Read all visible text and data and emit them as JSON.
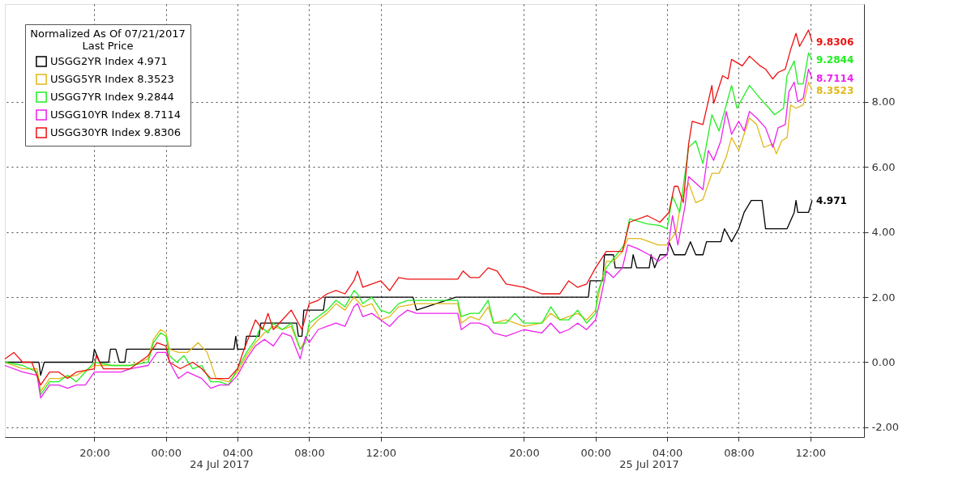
{
  "chart_data": {
    "type": "line",
    "legend_title": "Normalized As Of 07/21/2017\nLast Price",
    "legend": "top left",
    "grid": true,
    "line_style": "solid",
    "marker": "none",
    "xlim": [
      "2017-07-23T15:00",
      "2017-07-25T15:00"
    ],
    "xticks": [
      {
        "value": "2017-07-23T20:00",
        "label": "20:00"
      },
      {
        "value": "2017-07-24T00:00",
        "label": "00:00"
      },
      {
        "value": "2017-07-24T04:00",
        "label": "04:00"
      },
      {
        "value": "2017-07-24T08:00",
        "label": "08:00"
      },
      {
        "value": "2017-07-24T12:00",
        "label": "12:00"
      },
      {
        "value": "2017-07-24T20:00",
        "label": "20:00"
      },
      {
        "value": "2017-07-25T00:00",
        "label": "00:00"
      },
      {
        "value": "2017-07-25T04:00",
        "label": "04:00"
      },
      {
        "value": "2017-07-25T08:00",
        "label": "08:00"
      },
      {
        "value": "2017-07-25T12:00",
        "label": "12:00"
      }
    ],
    "ylim": [
      -2.3,
      11
    ],
    "yticks": [
      {
        "value": -2,
        "label": "-2.00"
      },
      {
        "value": 0,
        "label": "0.00"
      },
      {
        "value": 2,
        "label": "2.00"
      },
      {
        "value": 4,
        "label": "4.00"
      },
      {
        "value": 6,
        "label": "6.00"
      },
      {
        "value": 8,
        "label": "8.00"
      }
    ],
    "annotations": [
      "24 Jul 2017",
      "25 Jul 2017"
    ],
    "series": [
      {
        "name": "USGG2YR Index 4.971",
        "color": "#000000",
        "x": [
          "2017-07-23T15:00",
          "2017-07-23T16:54",
          "2017-07-23T17:00",
          "2017-07-23T17:12",
          "2017-07-23T19:54",
          "2017-07-23T20:00",
          "2017-07-23T20:18",
          "2017-07-23T20:48",
          "2017-07-23T20:54",
          "2017-07-23T21:12",
          "2017-07-23T21:24",
          "2017-07-23T21:42",
          "2017-07-23T21:48",
          "2017-07-24T03:48",
          "2017-07-24T03:54",
          "2017-07-24T04:00",
          "2017-07-24T04:24",
          "2017-07-24T04:30",
          "2017-07-24T05:12",
          "2017-07-24T05:18",
          "2017-07-24T07:18",
          "2017-07-24T07:24",
          "2017-07-24T07:36",
          "2017-07-24T07:42",
          "2017-07-24T08:48",
          "2017-07-24T08:54",
          "2017-07-24T13:48",
          "2017-07-24T14:00",
          "2017-07-24T16:12",
          "2017-07-24T23:36",
          "2017-07-24T23:42",
          "2017-07-25T00:24",
          "2017-07-25T00:30",
          "2017-07-25T01:00",
          "2017-07-25T01:06",
          "2017-07-25T02:00",
          "2017-07-25T02:06",
          "2017-07-25T02:18",
          "2017-07-25T03:00",
          "2017-07-25T03:06",
          "2017-07-25T03:18",
          "2017-07-25T03:36",
          "2017-07-25T04:00",
          "2017-07-25T04:06",
          "2017-07-25T04:24",
          "2017-07-25T05:00",
          "2017-07-25T05:18",
          "2017-07-25T05:36",
          "2017-07-25T06:00",
          "2017-07-25T06:12",
          "2017-07-25T06:42",
          "2017-07-25T07:00",
          "2017-07-25T07:12",
          "2017-07-25T07:36",
          "2017-07-25T08:00",
          "2017-07-25T08:18",
          "2017-07-25T08:42",
          "2017-07-25T09:18",
          "2017-07-25T09:30",
          "2017-07-25T10:42",
          "2017-07-25T11:06",
          "2017-07-25T11:12",
          "2017-07-25T11:18",
          "2017-07-25T11:54",
          "2017-07-25T12:06"
        ],
        "values": [
          0,
          0,
          -0.4,
          0,
          0,
          0.4,
          0,
          0,
          0.4,
          0.4,
          0,
          0,
          0.4,
          0.4,
          0.8,
          0.4,
          0.4,
          0.8,
          0.8,
          1.2,
          1.2,
          0.8,
          0.8,
          1.6,
          1.6,
          2.0,
          2.0,
          1.6,
          2.0,
          2.0,
          2.5,
          2.5,
          3.3,
          3.3,
          2.9,
          2.9,
          3.3,
          2.9,
          2.9,
          3.3,
          2.9,
          3.3,
          3.3,
          3.7,
          3.3,
          3.3,
          3.7,
          3.3,
          3.3,
          3.7,
          3.7,
          3.7,
          4.1,
          3.7,
          4.1,
          4.6,
          4.97,
          4.97,
          4.1,
          4.1,
          4.6,
          4.97,
          4.6,
          4.6,
          4.971
        ],
        "value_labels": [
          null,
          null,
          null,
          null,
          null,
          null,
          null,
          null,
          null,
          null,
          null,
          null,
          null,
          null,
          null,
          null,
          null,
          null,
          null,
          null,
          null,
          null,
          null,
          null,
          null,
          null,
          null,
          null,
          null,
          null,
          null,
          null,
          null,
          null,
          null,
          null,
          null,
          null,
          null,
          null,
          null,
          null,
          null,
          null,
          null,
          null,
          null,
          null,
          null,
          null,
          null,
          null,
          null,
          null,
          null,
          null,
          null,
          null,
          null,
          null,
          null,
          null,
          null,
          null,
          "4.971"
        ]
      },
      {
        "name": "USGG5YR Index 8.3523",
        "color": "#e0b81a",
        "x": [
          "2017-07-23T15:00",
          "2017-07-23T16:00",
          "2017-07-23T16:48",
          "2017-07-23T17:00",
          "2017-07-23T17:30",
          "2017-07-23T18:00",
          "2017-07-23T19:00",
          "2017-07-23T20:00",
          "2017-07-23T21:00",
          "2017-07-23T22:00",
          "2017-07-23T23:00",
          "2017-07-23T23:18",
          "2017-07-23T23:42",
          "2017-07-24T00:00",
          "2017-07-24T00:12",
          "2017-07-24T00:42",
          "2017-07-24T01:12",
          "2017-07-24T01:48",
          "2017-07-24T02:18",
          "2017-07-24T02:48",
          "2017-07-24T03:30",
          "2017-07-24T04:00",
          "2017-07-24T04:30",
          "2017-07-24T05:00",
          "2017-07-24T05:30",
          "2017-07-24T06:00",
          "2017-07-24T06:30",
          "2017-07-24T07:00",
          "2017-07-24T07:30",
          "2017-07-24T07:48",
          "2017-07-24T08:00",
          "2017-07-24T08:30",
          "2017-07-24T09:00",
          "2017-07-24T09:30",
          "2017-07-24T10:00",
          "2017-07-24T10:30",
          "2017-07-24T11:00",
          "2017-07-24T11:30",
          "2017-07-24T12:00",
          "2017-07-24T12:30",
          "2017-07-24T13:00",
          "2017-07-24T14:00",
          "2017-07-24T16:18",
          "2017-07-24T16:30",
          "2017-07-24T17:00",
          "2017-07-24T17:30",
          "2017-07-24T18:00",
          "2017-07-24T18:18",
          "2017-07-24T19:00",
          "2017-07-24T20:00",
          "2017-07-24T21:00",
          "2017-07-24T21:30",
          "2017-07-24T22:00",
          "2017-07-24T23:00",
          "2017-07-24T23:30",
          "2017-07-25T00:00",
          "2017-07-25T00:18",
          "2017-07-25T00:36",
          "2017-07-25T01:00",
          "2017-07-25T01:30",
          "2017-07-25T01:48",
          "2017-07-25T02:30",
          "2017-07-25T03:00",
          "2017-07-25T03:30",
          "2017-07-25T04:00",
          "2017-07-25T04:30",
          "2017-07-25T04:48",
          "2017-07-25T05:12",
          "2017-07-25T05:36",
          "2017-07-25T06:00",
          "2017-07-25T06:30",
          "2017-07-25T06:54",
          "2017-07-25T07:18",
          "2017-07-25T07:36",
          "2017-07-25T08:00",
          "2017-07-25T08:36",
          "2017-07-25T09:00",
          "2017-07-25T09:24",
          "2017-07-25T09:54",
          "2017-07-25T10:06",
          "2017-07-25T10:24",
          "2017-07-25T10:42",
          "2017-07-25T10:54",
          "2017-07-25T11:12",
          "2017-07-25T11:36",
          "2017-07-25T11:54",
          "2017-07-25T12:06"
        ],
        "values": [
          0.0,
          -0.2,
          -0.2,
          -0.9,
          -0.5,
          -0.5,
          -0.4,
          -0.1,
          -0.1,
          -0.1,
          0.1,
          0.7,
          1.0,
          0.9,
          0.4,
          0.3,
          0.3,
          0.6,
          0.3,
          -0.5,
          -0.6,
          -0.3,
          0.2,
          0.6,
          0.9,
          1.1,
          1.0,
          1.1,
          0.4,
          0.7,
          1.0,
          1.3,
          1.5,
          1.8,
          1.6,
          2.0,
          1.7,
          1.8,
          1.3,
          1.4,
          1.7,
          1.8,
          1.8,
          1.2,
          1.4,
          1.3,
          1.7,
          1.2,
          1.3,
          1.1,
          1.2,
          1.5,
          1.3,
          1.5,
          1.3,
          1.6,
          2.4,
          3.1,
          3.1,
          3.4,
          3.8,
          3.8,
          3.7,
          3.6,
          3.6,
          4.0,
          5.0,
          5.5,
          4.9,
          5.0,
          5.8,
          5.8,
          6.3,
          6.9,
          6.5,
          7.5,
          7.3,
          6.6,
          6.7,
          6.4,
          6.8,
          6.9,
          7.9,
          7.8,
          7.9,
          8.6,
          8.3523
        ],
        "value_labels": [
          null,
          null,
          null,
          null,
          null,
          null,
          null,
          null,
          null,
          null,
          null,
          null,
          null,
          null,
          null,
          null,
          null,
          null,
          null,
          null,
          null,
          null,
          null,
          null,
          null,
          null,
          null,
          null,
          null,
          null,
          null,
          null,
          null,
          null,
          null,
          null,
          null,
          null,
          null,
          null,
          null,
          null,
          null,
          null,
          null,
          null,
          null,
          null,
          null,
          null,
          null,
          null,
          null,
          null,
          null,
          null,
          null,
          null,
          null,
          null,
          null,
          null,
          null,
          null,
          null,
          null,
          null,
          null,
          null,
          null,
          null,
          null,
          null,
          null,
          null,
          null,
          null,
          null,
          null,
          null,
          null,
          null,
          null,
          null,
          null,
          null,
          "8.3523"
        ]
      },
      {
        "name": "USGG7YR Index 9.2844",
        "color": "#22ee22",
        "x": [
          "2017-07-23T15:00",
          "2017-07-23T16:00",
          "2017-07-23T16:48",
          "2017-07-23T17:00",
          "2017-07-23T17:30",
          "2017-07-23T18:00",
          "2017-07-23T18:30",
          "2017-07-23T19:00",
          "2017-07-23T19:30",
          "2017-07-23T20:00",
          "2017-07-23T21:00",
          "2017-07-23T22:00",
          "2017-07-23T23:00",
          "2017-07-23T23:18",
          "2017-07-23T23:42",
          "2017-07-24T00:00",
          "2017-07-24T00:12",
          "2017-07-24T00:36",
          "2017-07-24T01:00",
          "2017-07-24T01:30",
          "2017-07-24T02:00",
          "2017-07-24T02:30",
          "2017-07-24T03:00",
          "2017-07-24T03:30",
          "2017-07-24T04:00",
          "2017-07-24T04:30",
          "2017-07-24T05:00",
          "2017-07-24T05:18",
          "2017-07-24T05:42",
          "2017-07-24T06:00",
          "2017-07-24T06:30",
          "2017-07-24T07:00",
          "2017-07-24T07:30",
          "2017-07-24T07:48",
          "2017-07-24T08:00",
          "2017-07-24T08:30",
          "2017-07-24T09:00",
          "2017-07-24T09:30",
          "2017-07-24T10:00",
          "2017-07-24T10:30",
          "2017-07-24T10:42",
          "2017-07-24T11:00",
          "2017-07-24T11:30",
          "2017-07-24T12:00",
          "2017-07-24T12:30",
          "2017-07-24T13:00",
          "2017-07-24T13:30",
          "2017-07-24T14:00",
          "2017-07-24T16:18",
          "2017-07-24T16:30",
          "2017-07-24T17:00",
          "2017-07-24T17:30",
          "2017-07-24T18:00",
          "2017-07-24T18:18",
          "2017-07-24T19:00",
          "2017-07-24T19:30",
          "2017-07-24T20:00",
          "2017-07-24T21:00",
          "2017-07-24T21:30",
          "2017-07-24T22:00",
          "2017-07-24T22:30",
          "2017-07-24T23:00",
          "2017-07-24T23:30",
          "2017-07-25T00:00",
          "2017-07-25T00:06",
          "2017-07-25T00:36",
          "2017-07-25T01:36",
          "2017-07-25T01:54",
          "2017-07-25T02:54",
          "2017-07-25T03:36",
          "2017-07-25T04:00",
          "2017-07-25T04:18",
          "2017-07-25T04:42",
          "2017-07-25T05:12",
          "2017-07-25T05:36",
          "2017-07-25T06:00",
          "2017-07-25T06:30",
          "2017-07-25T06:54",
          "2017-07-25T07:24",
          "2017-07-25T07:36",
          "2017-07-25T07:54",
          "2017-07-25T08:36",
          "2017-07-25T09:12",
          "2017-07-25T09:42",
          "2017-07-25T10:00",
          "2017-07-25T10:30",
          "2017-07-25T10:42",
          "2017-07-25T11:06",
          "2017-07-25T11:18",
          "2017-07-25T11:36",
          "2017-07-25T11:54",
          "2017-07-25T12:06"
        ],
        "values": [
          0.0,
          -0.1,
          -0.3,
          -1.0,
          -0.6,
          -0.6,
          -0.4,
          -0.6,
          -0.3,
          0.0,
          -0.1,
          -0.1,
          0.0,
          0.6,
          0.9,
          0.8,
          0.2,
          0.0,
          0.2,
          -0.2,
          -0.1,
          -0.6,
          -0.6,
          -0.7,
          -0.2,
          0.3,
          0.7,
          1.1,
          0.9,
          1.2,
          1.0,
          1.2,
          0.4,
          0.6,
          1.2,
          1.4,
          1.6,
          1.9,
          1.7,
          2.2,
          2.1,
          1.8,
          2.0,
          1.6,
          1.5,
          1.8,
          1.9,
          1.9,
          1.9,
          1.4,
          1.5,
          1.5,
          1.9,
          1.2,
          1.2,
          1.5,
          1.2,
          1.2,
          1.7,
          1.3,
          1.3,
          1.6,
          1.2,
          1.5,
          2.1,
          2.9,
          3.6,
          4.4,
          4.25,
          4.2,
          4.1,
          5.1,
          4.6,
          6.6,
          6.8,
          6.1,
          7.6,
          7.1,
          8.1,
          8.5,
          7.8,
          8.5,
          8.1,
          7.8,
          7.6,
          7.8,
          8.8,
          9.25,
          8.55,
          8.55,
          9.5,
          9.2844
        ],
        "value_labels": [
          null,
          null,
          null,
          null,
          null,
          null,
          null,
          null,
          null,
          null,
          null,
          null,
          null,
          null,
          null,
          null,
          null,
          null,
          null,
          null,
          null,
          null,
          null,
          null,
          null,
          null,
          null,
          null,
          null,
          null,
          null,
          null,
          null,
          null,
          null,
          null,
          null,
          null,
          null,
          null,
          null,
          null,
          null,
          null,
          null,
          null,
          null,
          null,
          null,
          null,
          null,
          null,
          null,
          null,
          null,
          null,
          null,
          null,
          null,
          null,
          null,
          null,
          null,
          null,
          null,
          null,
          null,
          null,
          null,
          null,
          null,
          null,
          null,
          null,
          null,
          null,
          null,
          null,
          null,
          null,
          null,
          null,
          null,
          null,
          null,
          null,
          null,
          null,
          null,
          null,
          null,
          "9.2844"
        ]
      },
      {
        "name": "USGG10YR Index 8.7114",
        "color": "#ee22ee",
        "x": [
          "2017-07-23T15:00",
          "2017-07-23T16:00",
          "2017-07-23T16:48",
          "2017-07-23T17:00",
          "2017-07-23T17:30",
          "2017-07-23T18:00",
          "2017-07-23T18:30",
          "2017-07-23T19:00",
          "2017-07-23T19:30",
          "2017-07-23T20:00",
          "2017-07-23T21:00",
          "2017-07-23T21:30",
          "2017-07-23T22:00",
          "2017-07-23T23:00",
          "2017-07-23T23:30",
          "2017-07-24T00:00",
          "2017-07-24T00:18",
          "2017-07-24T00:42",
          "2017-07-24T01:12",
          "2017-07-24T02:00",
          "2017-07-24T02:30",
          "2017-07-24T03:00",
          "2017-07-24T03:30",
          "2017-07-24T04:00",
          "2017-07-24T04:30",
          "2017-07-24T05:00",
          "2017-07-24T05:30",
          "2017-07-24T06:00",
          "2017-07-24T06:30",
          "2017-07-24T07:00",
          "2017-07-24T07:30",
          "2017-07-24T07:48",
          "2017-07-24T08:00",
          "2017-07-24T08:30",
          "2017-07-24T09:00",
          "2017-07-24T09:30",
          "2017-07-24T10:00",
          "2017-07-24T10:30",
          "2017-07-24T10:42",
          "2017-07-24T11:00",
          "2017-07-24T11:30",
          "2017-07-24T12:00",
          "2017-07-24T12:30",
          "2017-07-24T13:00",
          "2017-07-24T13:30",
          "2017-07-24T14:00",
          "2017-07-24T16:18",
          "2017-07-24T16:30",
          "2017-07-24T17:00",
          "2017-07-24T17:30",
          "2017-07-24T18:00",
          "2017-07-24T18:18",
          "2017-07-24T19:00",
          "2017-07-24T20:00",
          "2017-07-24T21:00",
          "2017-07-24T21:30",
          "2017-07-24T22:00",
          "2017-07-24T22:30",
          "2017-07-24T23:00",
          "2017-07-24T23:30",
          "2017-07-25T00:00",
          "2017-07-25T00:18",
          "2017-07-25T00:36",
          "2017-07-25T01:00",
          "2017-07-25T01:30",
          "2017-07-25T01:48",
          "2017-07-25T02:18",
          "2017-07-25T03:00",
          "2017-07-25T03:30",
          "2017-07-25T04:00",
          "2017-07-25T04:18",
          "2017-07-25T04:36",
          "2017-07-25T05:00",
          "2017-07-25T05:12",
          "2017-07-25T05:36",
          "2017-07-25T06:00",
          "2017-07-25T06:18",
          "2017-07-25T06:36",
          "2017-07-25T07:00",
          "2017-07-25T07:18",
          "2017-07-25T07:36",
          "2017-07-25T08:00",
          "2017-07-25T08:18",
          "2017-07-25T08:36",
          "2017-07-25T09:00",
          "2017-07-25T09:30",
          "2017-07-25T09:54",
          "2017-07-25T10:12",
          "2017-07-25T10:36",
          "2017-07-25T10:48",
          "2017-07-25T11:06",
          "2017-07-25T11:18",
          "2017-07-25T11:36",
          "2017-07-25T11:54",
          "2017-07-25T12:06"
        ],
        "values": [
          -0.1,
          -0.3,
          -0.4,
          -1.1,
          -0.7,
          -0.7,
          -0.8,
          -0.7,
          -0.7,
          -0.3,
          -0.3,
          -0.3,
          -0.2,
          -0.1,
          0.3,
          0.3,
          -0.1,
          -0.5,
          -0.3,
          -0.5,
          -0.8,
          -0.7,
          -0.7,
          -0.4,
          0.1,
          0.5,
          0.7,
          0.5,
          0.9,
          0.8,
          0.1,
          0.8,
          0.6,
          1.0,
          1.1,
          1.2,
          1.1,
          1.7,
          1.8,
          1.4,
          1.5,
          1.3,
          1.1,
          1.4,
          1.6,
          1.5,
          1.5,
          1.0,
          1.2,
          1.2,
          1.1,
          0.9,
          0.8,
          1.0,
          0.9,
          1.2,
          0.9,
          1.0,
          1.2,
          1.0,
          1.3,
          2.0,
          2.8,
          2.6,
          2.9,
          3.6,
          3.5,
          3.3,
          3.1,
          3.3,
          4.5,
          3.6,
          4.8,
          5.7,
          5.5,
          5.3,
          6.5,
          6.2,
          6.8,
          7.7,
          7.0,
          7.4,
          7.1,
          7.7,
          7.5,
          7.2,
          6.6,
          7.2,
          7.3,
          8.3,
          8.6,
          8.0,
          8.1,
          9.0,
          8.7114
        ],
        "value_labels": [
          null,
          null,
          null,
          null,
          null,
          null,
          null,
          null,
          null,
          null,
          null,
          null,
          null,
          null,
          null,
          null,
          null,
          null,
          null,
          null,
          null,
          null,
          null,
          null,
          null,
          null,
          null,
          null,
          null,
          null,
          null,
          null,
          null,
          null,
          null,
          null,
          null,
          null,
          null,
          null,
          null,
          null,
          null,
          null,
          null,
          null,
          null,
          null,
          null,
          null,
          null,
          null,
          null,
          null,
          null,
          null,
          null,
          null,
          null,
          null,
          null,
          null,
          null,
          null,
          null,
          null,
          null,
          null,
          null,
          null,
          null,
          null,
          null,
          null,
          null,
          null,
          null,
          null,
          null,
          null,
          null,
          null,
          null,
          null,
          null,
          null,
          null,
          null,
          null,
          null,
          null,
          null,
          null,
          null,
          "8.7114"
        ]
      },
      {
        "name": "USGG30YR Index 9.8306",
        "color": "#ee1111",
        "x": [
          "2017-07-23T15:00",
          "2017-07-23T15:30",
          "2017-07-23T16:00",
          "2017-07-23T16:30",
          "2017-07-23T17:00",
          "2017-07-23T17:30",
          "2017-07-23T18:00",
          "2017-07-23T18:30",
          "2017-07-23T19:00",
          "2017-07-23T20:00",
          "2017-07-23T20:06",
          "2017-07-23T20:30",
          "2017-07-23T21:00",
          "2017-07-23T22:00",
          "2017-07-23T22:30",
          "2017-07-23T23:00",
          "2017-07-23T23:30",
          "2017-07-24T00:00",
          "2017-07-24T00:12",
          "2017-07-24T00:48",
          "2017-07-24T01:30",
          "2017-07-24T02:00",
          "2017-07-24T02:30",
          "2017-07-24T03:00",
          "2017-07-24T03:30",
          "2017-07-24T04:00",
          "2017-07-24T04:18",
          "2017-07-24T05:00",
          "2017-07-24T05:24",
          "2017-07-24T05:42",
          "2017-07-24T06:00",
          "2017-07-24T06:30",
          "2017-07-24T07:00",
          "2017-07-24T07:18",
          "2017-07-24T07:36",
          "2017-07-24T08:00",
          "2017-07-24T08:30",
          "2017-07-24T09:00",
          "2017-07-24T09:30",
          "2017-07-24T10:00",
          "2017-07-24T10:30",
          "2017-07-24T10:42",
          "2017-07-24T11:00",
          "2017-07-24T11:30",
          "2017-07-24T12:00",
          "2017-07-24T12:30",
          "2017-07-24T13:00",
          "2017-07-24T13:30",
          "2017-07-24T16:18",
          "2017-07-24T16:36",
          "2017-07-24T17:00",
          "2017-07-24T17:30",
          "2017-07-24T18:00",
          "2017-07-24T18:30",
          "2017-07-24T19:00",
          "2017-07-24T20:00",
          "2017-07-24T21:00",
          "2017-07-24T22:00",
          "2017-07-24T22:30",
          "2017-07-24T23:00",
          "2017-07-24T23:30",
          "2017-07-25T00:00",
          "2017-07-25T00:36",
          "2017-07-25T01:30",
          "2017-07-25T01:54",
          "2017-07-25T02:54",
          "2017-07-25T03:36",
          "2017-07-25T04:06",
          "2017-07-25T04:24",
          "2017-07-25T04:36",
          "2017-07-25T04:54",
          "2017-07-25T05:12",
          "2017-07-25T05:24",
          "2017-07-25T06:00",
          "2017-07-25T06:30",
          "2017-07-25T06:36",
          "2017-07-25T07:06",
          "2017-07-25T07:24",
          "2017-07-25T07:36",
          "2017-07-25T08:12",
          "2017-07-25T08:36",
          "2017-07-25T09:12",
          "2017-07-25T09:30",
          "2017-07-25T09:54",
          "2017-07-25T10:12",
          "2017-07-25T10:36",
          "2017-07-25T10:54",
          "2017-07-25T11:12",
          "2017-07-25T11:24",
          "2017-07-25T11:54",
          "2017-07-25T12:06"
        ],
        "values": [
          0.1,
          0.3,
          0.0,
          0.0,
          -0.7,
          -0.3,
          -0.3,
          -0.5,
          -0.3,
          -0.2,
          0.2,
          -0.2,
          -0.2,
          -0.2,
          0.0,
          0.2,
          0.6,
          0.5,
          0.0,
          -0.2,
          0.0,
          -0.2,
          -0.5,
          -0.5,
          -0.5,
          -0.2,
          0.3,
          1.3,
          1.0,
          1.5,
          1.0,
          1.3,
          1.6,
          1.3,
          1.0,
          1.8,
          1.9,
          2.1,
          2.2,
          2.1,
          2.5,
          2.8,
          2.3,
          2.4,
          2.5,
          2.2,
          2.6,
          2.55,
          2.55,
          2.8,
          2.6,
          2.6,
          2.9,
          2.8,
          2.4,
          2.3,
          2.1,
          2.1,
          2.5,
          2.3,
          2.4,
          2.9,
          3.4,
          3.4,
          4.3,
          4.5,
          4.3,
          4.6,
          5.4,
          5.4,
          4.9,
          6.7,
          7.4,
          7.3,
          8.5,
          7.95,
          8.8,
          8.7,
          9.3,
          9.1,
          9.4,
          9.1,
          9.0,
          8.7,
          8.9,
          9.0,
          9.6,
          10.1,
          9.7,
          10.2,
          9.8306
        ],
        "value_labels": [
          null,
          null,
          null,
          null,
          null,
          null,
          null,
          null,
          null,
          null,
          null,
          null,
          null,
          null,
          null,
          null,
          null,
          null,
          null,
          null,
          null,
          null,
          null,
          null,
          null,
          null,
          null,
          null,
          null,
          null,
          null,
          null,
          null,
          null,
          null,
          null,
          null,
          null,
          null,
          null,
          null,
          null,
          null,
          null,
          null,
          null,
          null,
          null,
          null,
          null,
          null,
          null,
          null,
          null,
          null,
          null,
          null,
          null,
          null,
          null,
          null,
          null,
          null,
          null,
          null,
          null,
          null,
          null,
          null,
          null,
          null,
          null,
          null,
          null,
          null,
          null,
          null,
          null,
          null,
          null,
          null,
          null,
          null,
          null,
          null,
          null,
          null,
          null,
          null,
          null,
          "9.8306"
        ]
      }
    ]
  }
}
